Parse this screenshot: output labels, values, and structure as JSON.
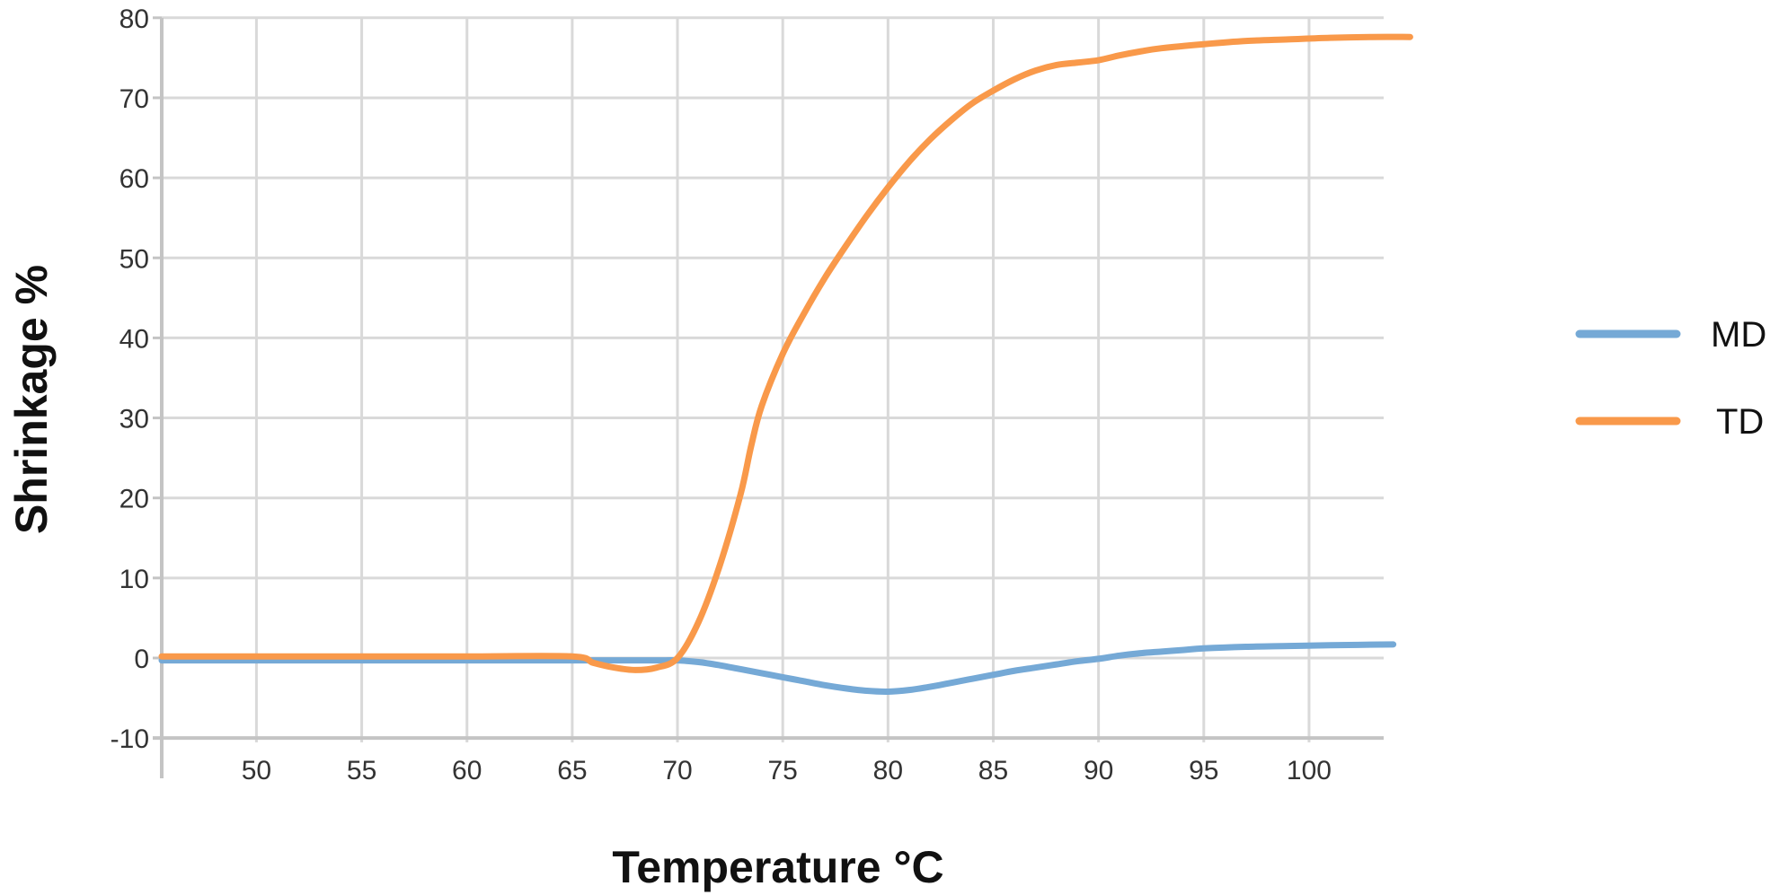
{
  "chart_data": {
    "type": "line",
    "title": "",
    "xlabel": "Temperature °C",
    "ylabel": "Shrinkage %",
    "xlim": [
      45.5,
      104
    ],
    "ylim": [
      -10,
      80
    ],
    "x_ticks": [
      50,
      55,
      60,
      65,
      70,
      75,
      80,
      85,
      90,
      95,
      100
    ],
    "y_ticks": [
      -10,
      0,
      10,
      20,
      30,
      40,
      50,
      60,
      70,
      80
    ],
    "grid": true,
    "legend_position": "right",
    "series": [
      {
        "name": "MD",
        "color": "#75A9D6",
        "points": [
          [
            45.5,
            -0.3
          ],
          [
            50,
            -0.3
          ],
          [
            55,
            -0.3
          ],
          [
            60,
            -0.3
          ],
          [
            65,
            -0.3
          ],
          [
            67,
            -0.3
          ],
          [
            69,
            -0.3
          ],
          [
            70,
            -0.3
          ],
          [
            71,
            -0.5
          ],
          [
            72,
            -0.9
          ],
          [
            73,
            -1.4
          ],
          [
            74,
            -1.9
          ],
          [
            75,
            -2.4
          ],
          [
            76,
            -2.9
          ],
          [
            77,
            -3.4
          ],
          [
            78,
            -3.8
          ],
          [
            79,
            -4.1
          ],
          [
            80,
            -4.2
          ],
          [
            81,
            -4.0
          ],
          [
            82,
            -3.6
          ],
          [
            83,
            -3.1
          ],
          [
            84,
            -2.6
          ],
          [
            85,
            -2.1
          ],
          [
            86,
            -1.6
          ],
          [
            87,
            -1.2
          ],
          [
            88,
            -0.8
          ],
          [
            89,
            -0.4
          ],
          [
            90,
            -0.1
          ],
          [
            91,
            0.3
          ],
          [
            92,
            0.6
          ],
          [
            93,
            0.8
          ],
          [
            94,
            1.0
          ],
          [
            95,
            1.2
          ],
          [
            97,
            1.4
          ],
          [
            99,
            1.5
          ],
          [
            101,
            1.6
          ],
          [
            104,
            1.7
          ]
        ]
      },
      {
        "name": "TD",
        "color": "#F9994A",
        "points": [
          [
            45.5,
            0.2
          ],
          [
            50,
            0.2
          ],
          [
            55,
            0.2
          ],
          [
            60,
            0.2
          ],
          [
            65,
            0.2
          ],
          [
            66,
            -0.6
          ],
          [
            67,
            -1.2
          ],
          [
            68,
            -1.5
          ],
          [
            69,
            -1.2
          ],
          [
            70,
            0.0
          ],
          [
            71,
            4.5
          ],
          [
            72,
            11.5
          ],
          [
            73,
            20.5
          ],
          [
            73.5,
            26.5
          ],
          [
            74,
            31.5
          ],
          [
            75,
            38.0
          ],
          [
            76,
            43.0
          ],
          [
            77,
            47.5
          ],
          [
            78,
            51.5
          ],
          [
            79,
            55.3
          ],
          [
            80,
            58.8
          ],
          [
            81,
            62.0
          ],
          [
            82,
            64.8
          ],
          [
            83,
            67.2
          ],
          [
            84,
            69.3
          ],
          [
            85,
            70.9
          ],
          [
            86,
            72.3
          ],
          [
            87,
            73.4
          ],
          [
            88,
            74.1
          ],
          [
            89,
            74.4
          ],
          [
            90,
            74.7
          ],
          [
            91,
            75.3
          ],
          [
            92,
            75.8
          ],
          [
            93,
            76.2
          ],
          [
            95,
            76.7
          ],
          [
            97,
            77.1
          ],
          [
            99,
            77.3
          ],
          [
            101,
            77.5
          ],
          [
            103,
            77.6
          ],
          [
            104.8,
            77.6
          ]
        ]
      }
    ]
  }
}
